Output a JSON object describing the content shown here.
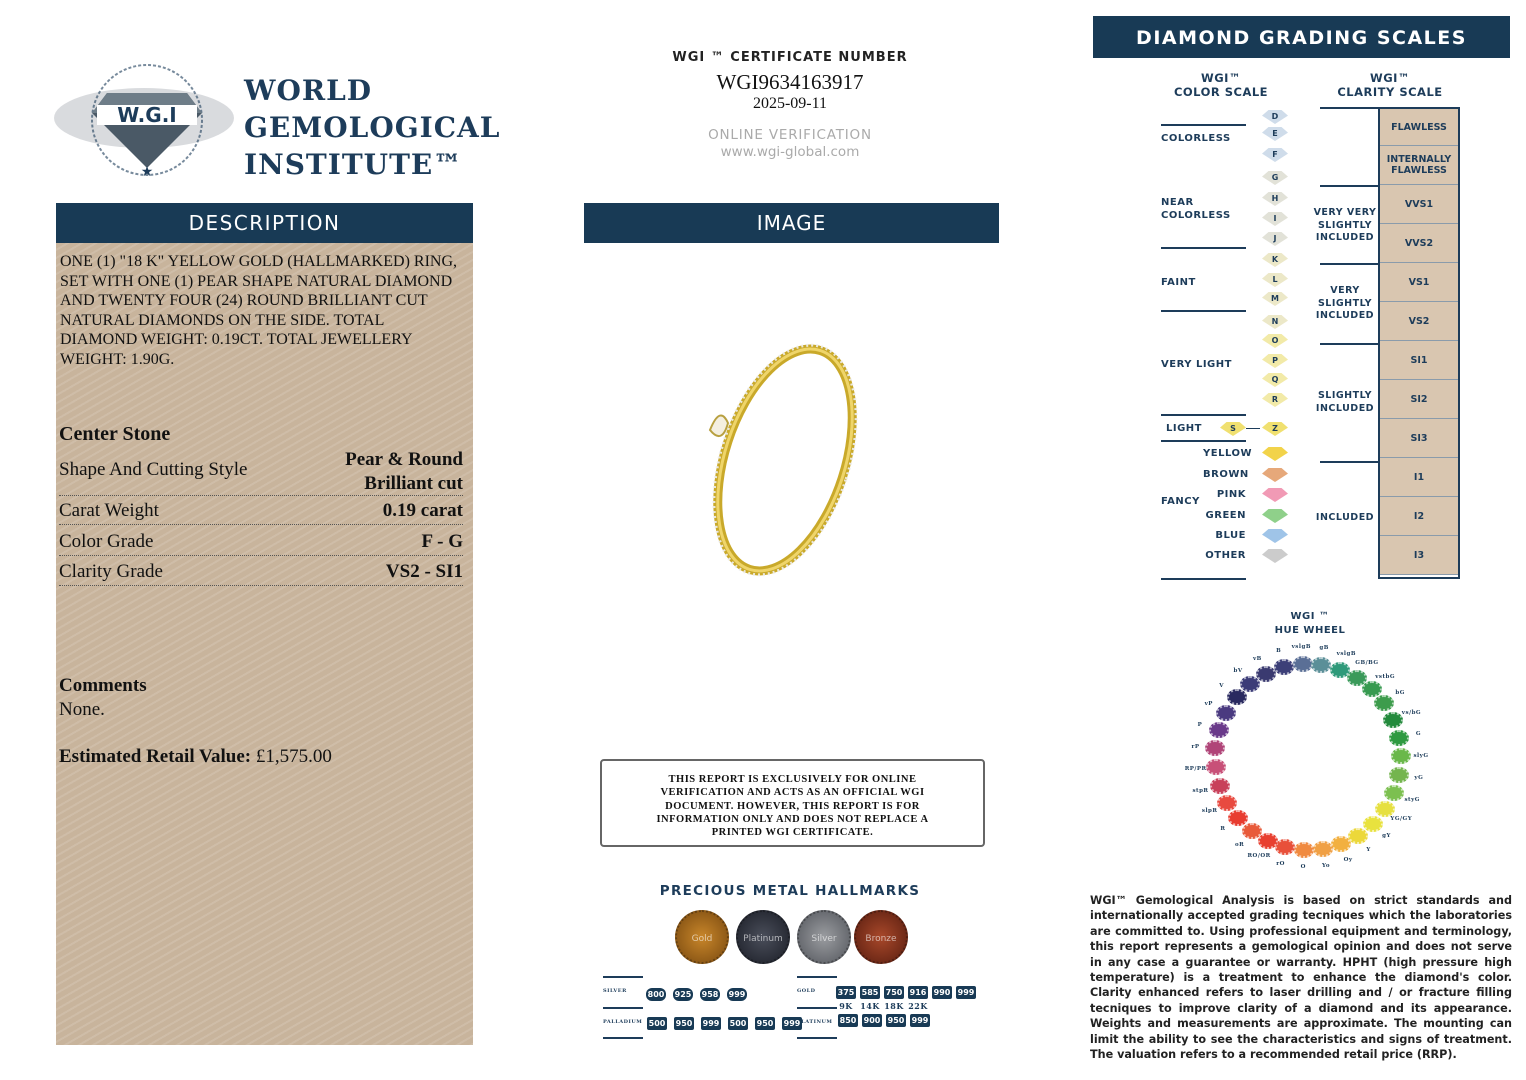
{
  "logo": {
    "arc_text": "WORLD GEMOLOGICAL INSTITUTE",
    "emblem": "W.G.I",
    "name_lines": [
      "WORLD",
      "GEMOLOGICAL",
      "INSTITUTE™"
    ]
  },
  "description": {
    "heading": "DESCRIPTION",
    "text": "ONE (1) \"18 K\" YELLOW GOLD (HALLMARKED) RING, SET WITH ONE (1) PEAR SHAPE NATURAL DIAMOND AND TWENTY FOUR (24) ROUND BRILLIANT CUT NATURAL DIAMONDS ON THE SIDE. TOTAL DIAMOND WEIGHT: 0.19ct. TOTAL JEWELLERY WEIGHT: 1.90g.",
    "center_stone": "Center Stone",
    "rows": [
      {
        "label": "Shape And Cutting Style",
        "value": "Pear & Round Brilliant cut"
      },
      {
        "label": "Carat Weight",
        "value": "0.19 carat"
      },
      {
        "label": "Color Grade",
        "value": "F - G"
      },
      {
        "label": "Clarity Grade",
        "value": "VS2 - SI1"
      }
    ],
    "comments_label": "Comments",
    "comments": "None.",
    "retail_label": "Estimated Retail Value:",
    "retail_value": "£1,575.00"
  },
  "certificate": {
    "label": "WGI ™ CERTIFICATE NUMBER",
    "number": "WGI9634163917",
    "date": "2025-09-11",
    "verification": "ONLINE VERIFICATION",
    "url": "www.wgi-global.com"
  },
  "image": {
    "heading": "IMAGE"
  },
  "notice": "THIS REPORT IS EXCLUSIVELY FOR ONLINE VERIFICATION AND ACTS AS AN OFFICIAL WGI DOCUMENT. HOWEVER, THIS REPORT IS FOR INFORMATION ONLY AND DOES NOT REPLACE A PRINTED WGI CERTIFICATE.",
  "hallmarks": {
    "title": "PRECIOUS METAL HALLMARKS",
    "coins": [
      "Gold",
      "Platinum",
      "Silver",
      "Bronze"
    ],
    "silver_label": "SILVER",
    "silver": [
      "800",
      "925",
      "958",
      "999"
    ],
    "palladium_label": "PALLADIUM",
    "palladium": [
      "500",
      "950",
      "999",
      "500",
      "950",
      "999"
    ],
    "gold_label": "GOLD",
    "gold": [
      "375",
      "585",
      "750",
      "916",
      "990",
      "999"
    ],
    "karats": [
      "9K",
      "14K",
      "18K",
      "22K"
    ],
    "platinum_label": "PLATINUM",
    "platinum": [
      "850",
      "900",
      "950",
      "999"
    ]
  },
  "grading": {
    "heading": "DIAMOND GRADING  SCALES",
    "color_title": [
      "WGI™",
      "COLOR SCALE"
    ],
    "clarity_title": [
      "WGI™",
      "CLARITY SCALE"
    ],
    "color_groups": [
      "COLORLESS",
      "NEAR COLORLESS",
      "FAINT",
      "VERY LIGHT",
      "LIGHT",
      "FANCY"
    ],
    "color_letters": [
      "D",
      "E",
      "F",
      "G",
      "H",
      "I",
      "J",
      "K",
      "L",
      "M",
      "N",
      "O",
      "P",
      "Q",
      "R"
    ],
    "light_letters": [
      "S",
      "Z"
    ],
    "fancy": [
      "YELLOW",
      "BROWN",
      "PINK",
      "GREEN",
      "BLUE",
      "OTHER"
    ],
    "fancy_colors": [
      "#f2d34a",
      "#e6a87a",
      "#f19ab5",
      "#8fd08a",
      "#9fc4e8",
      "#cccccc"
    ],
    "clarity_groups": [
      "VERY VERY SLIGHTLY INCLUDED",
      "VERY SLIGHTLY INCLUDED",
      "SLIGHTLY INCLUDED",
      "INCLUDED"
    ],
    "clarity_grades": [
      "FLAWLESS",
      "INTERNALLY FLAWLESS",
      "VVS1",
      "VVS2",
      "VS1",
      "VS2",
      "SI1",
      "SI2",
      "SI3",
      "I1",
      "I2",
      "I3"
    ]
  },
  "hue_wheel": {
    "title": [
      "WGI ™",
      "HUE WHEEL"
    ],
    "hues": [
      "B",
      "vslgB",
      "gB",
      "vslgB",
      "GB/BG",
      "vstbG",
      "bG",
      "vs/bG",
      "G",
      "slyG",
      "yG",
      "styG",
      "YG/GY",
      "gY",
      "Y",
      "Oy",
      "Yo",
      "O",
      "rO",
      "RO/OR",
      "oR",
      "R",
      "slpR",
      "stpR",
      "RP/PR",
      "rP",
      "P",
      "vP",
      "V",
      "bV",
      "vB"
    ],
    "colors": [
      "#3c3f78",
      "#5a6f96",
      "#5b8f98",
      "#2f9a7a",
      "#3a9a5a",
      "#379a50",
      "#3d9c4c",
      "#238a3c",
      "#2e9a40",
      "#6ab84a",
      "#74b54e",
      "#7cc050",
      "#e6e040",
      "#e8e23e",
      "#ecd83a",
      "#f2b040",
      "#f0a045",
      "#f08a40",
      "#e8503a",
      "#e84030",
      "#e85a3a",
      "#e83c30",
      "#e84a40",
      "#c8405a",
      "#c85078",
      "#b04478",
      "#6a3a8a",
      "#4a3a80",
      "#2a2a60",
      "#3c3c78",
      "#3a3a70"
    ]
  },
  "footer": "WGI™ Gemological Analysis is based on strict standards and internationally accepted grading tecniques which the laboratories are committed to. Using professional equipment and terminology, this report represents a gemological opinion and does not serve in any case a guarantee or warranty. HPHT (high pressure high temperature) is a treatment to enhance the diamond's color. Clarity enhanced refers to laser drilling and / or fracture filling tecniques to improve clarity of a diamond and its appearance. Weights and measurements are approximate. The mounting can limit the ability to see the characteristics and signs of treatment. The valuation refers to a recommended retail price (RRP)."
}
